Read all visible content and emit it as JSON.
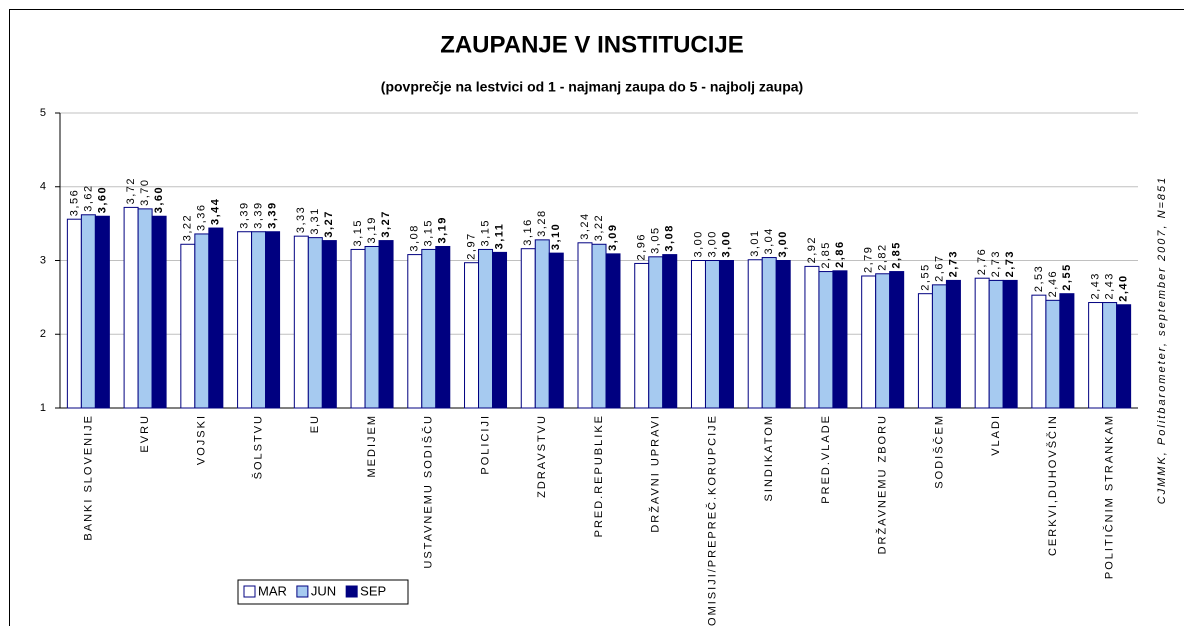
{
  "chart_data": {
    "type": "bar",
    "title": "ZAUPANJE V INSTITUCIJE",
    "subtitle": "(povprečje na lestvici od 1 - najmanj zaupa do 5 - najbolj zaupa)",
    "source": "CJMMK, Politbarometer, september 2007, N=851",
    "categories": [
      "BANKI SLOVENIJE",
      "EVRU",
      "VOJSKI",
      "ŠOLSTVU",
      "EU",
      "MEDIJEM",
      "USTAVNEMU SODIŠČU",
      "POLICIJI",
      "ZDRAVSTVU",
      "PRED.REPUBLIKE",
      "DRŽAVNI UPRAVI",
      "KOMISIJI/PREPREČ.KORUPCIJE",
      "SINDIKATOM",
      "PRED.VLADE",
      "DRŽAVNEMU ZBORU",
      "SODIŠČEM",
      "VLADI",
      "CERKVI,DUHOVŠČIN",
      "POLITIČNIM STRANKAM"
    ],
    "series": [
      {
        "name": "MAR",
        "color": "#ffffff",
        "values": [
          3.56,
          3.72,
          3.22,
          3.39,
          3.33,
          3.15,
          3.08,
          2.97,
          3.16,
          3.24,
          2.96,
          3.0,
          3.01,
          2.92,
          2.79,
          2.55,
          2.76,
          2.53,
          2.43
        ],
        "value_labels": [
          "3,56",
          "3,72",
          "3,22",
          "3,39",
          "3,33",
          "3,15",
          "3,08",
          "2,97",
          "3,16",
          "3,24",
          "2,96",
          "3,00",
          "3,01",
          "2,92",
          "2,79",
          "2,55",
          "2,76",
          "2,53",
          "2,43"
        ]
      },
      {
        "name": "JUN",
        "color": "#a6caf0",
        "values": [
          3.62,
          3.7,
          3.36,
          3.39,
          3.31,
          3.19,
          3.15,
          3.15,
          3.28,
          3.22,
          3.05,
          3.0,
          3.04,
          2.85,
          2.82,
          2.67,
          2.73,
          2.46,
          2.43
        ],
        "value_labels": [
          "3,62",
          "3,70",
          "3,36",
          "3,39",
          "3,31",
          "3,19",
          "3,15",
          "3,15",
          "3,28",
          "3,22",
          "3,05",
          "3,00",
          "3,04",
          "2,85",
          "2,82",
          "2,67",
          "2,73",
          "2,46",
          "2,43"
        ]
      },
      {
        "name": "SEP",
        "color": "#000080",
        "values": [
          3.6,
          3.6,
          3.44,
          3.39,
          3.27,
          3.27,
          3.19,
          3.11,
          3.1,
          3.09,
          3.08,
          3.0,
          3.0,
          2.86,
          2.85,
          2.73,
          2.73,
          2.55,
          2.4
        ],
        "value_labels": [
          "3,60",
          "3,60",
          "3,44",
          "3,39",
          "3,27",
          "3,27",
          "3,19",
          "3,11",
          "3,10",
          "3,09",
          "3,08",
          "3,00",
          "3,00",
          "2,86",
          "2,85",
          "2,73",
          "2,73",
          "2,55",
          "2,40"
        ]
      }
    ],
    "ylim": [
      1,
      5
    ],
    "yticks": [
      1,
      2,
      3,
      4,
      5
    ],
    "grid": true,
    "legend": "bottom-left"
  }
}
